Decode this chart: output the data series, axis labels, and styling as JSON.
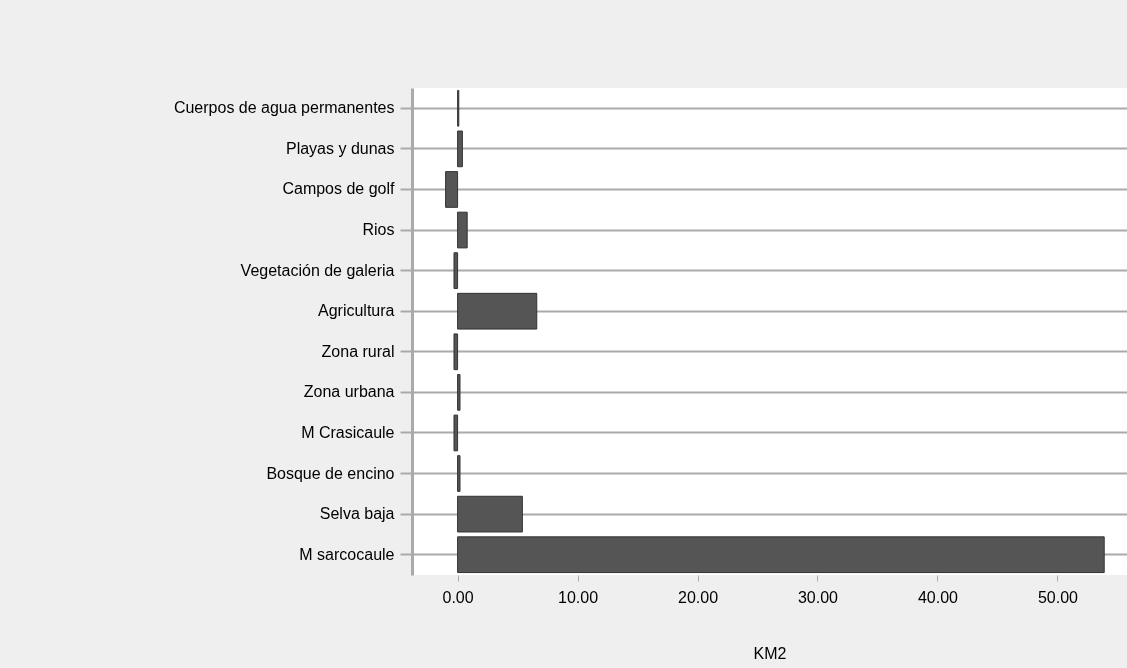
{
  "chart_data": {
    "type": "bar",
    "orientation": "horizontal",
    "categories": [
      "Cuerpos de agua permanentes",
      "Playas y dunas",
      "Campos de golf",
      "Rios",
      "Vegetación de galeria",
      "Agricultura",
      "Zona rural",
      "Zona urbana",
      "M Crasicaule",
      "Bosque de encino",
      "Selva baja",
      "M sarcocaule"
    ],
    "values": [
      0.1,
      0.4,
      -1.0,
      0.8,
      -0.3,
      6.6,
      -0.3,
      0.2,
      -0.3,
      0.2,
      5.4,
      53.9
    ],
    "color": "#555555",
    "xlabel": "KM2",
    "xlim": [
      -3.8,
      55.8
    ],
    "xticks": [
      {
        "value": 0,
        "label": "0.00"
      },
      {
        "value": 10,
        "label": "10.00"
      },
      {
        "value": 20,
        "label": "20.00"
      },
      {
        "value": 30,
        "label": "30.00"
      },
      {
        "value": 40,
        "label": "40.00"
      },
      {
        "value": 50,
        "label": "50.00"
      }
    ],
    "grid": "y"
  }
}
